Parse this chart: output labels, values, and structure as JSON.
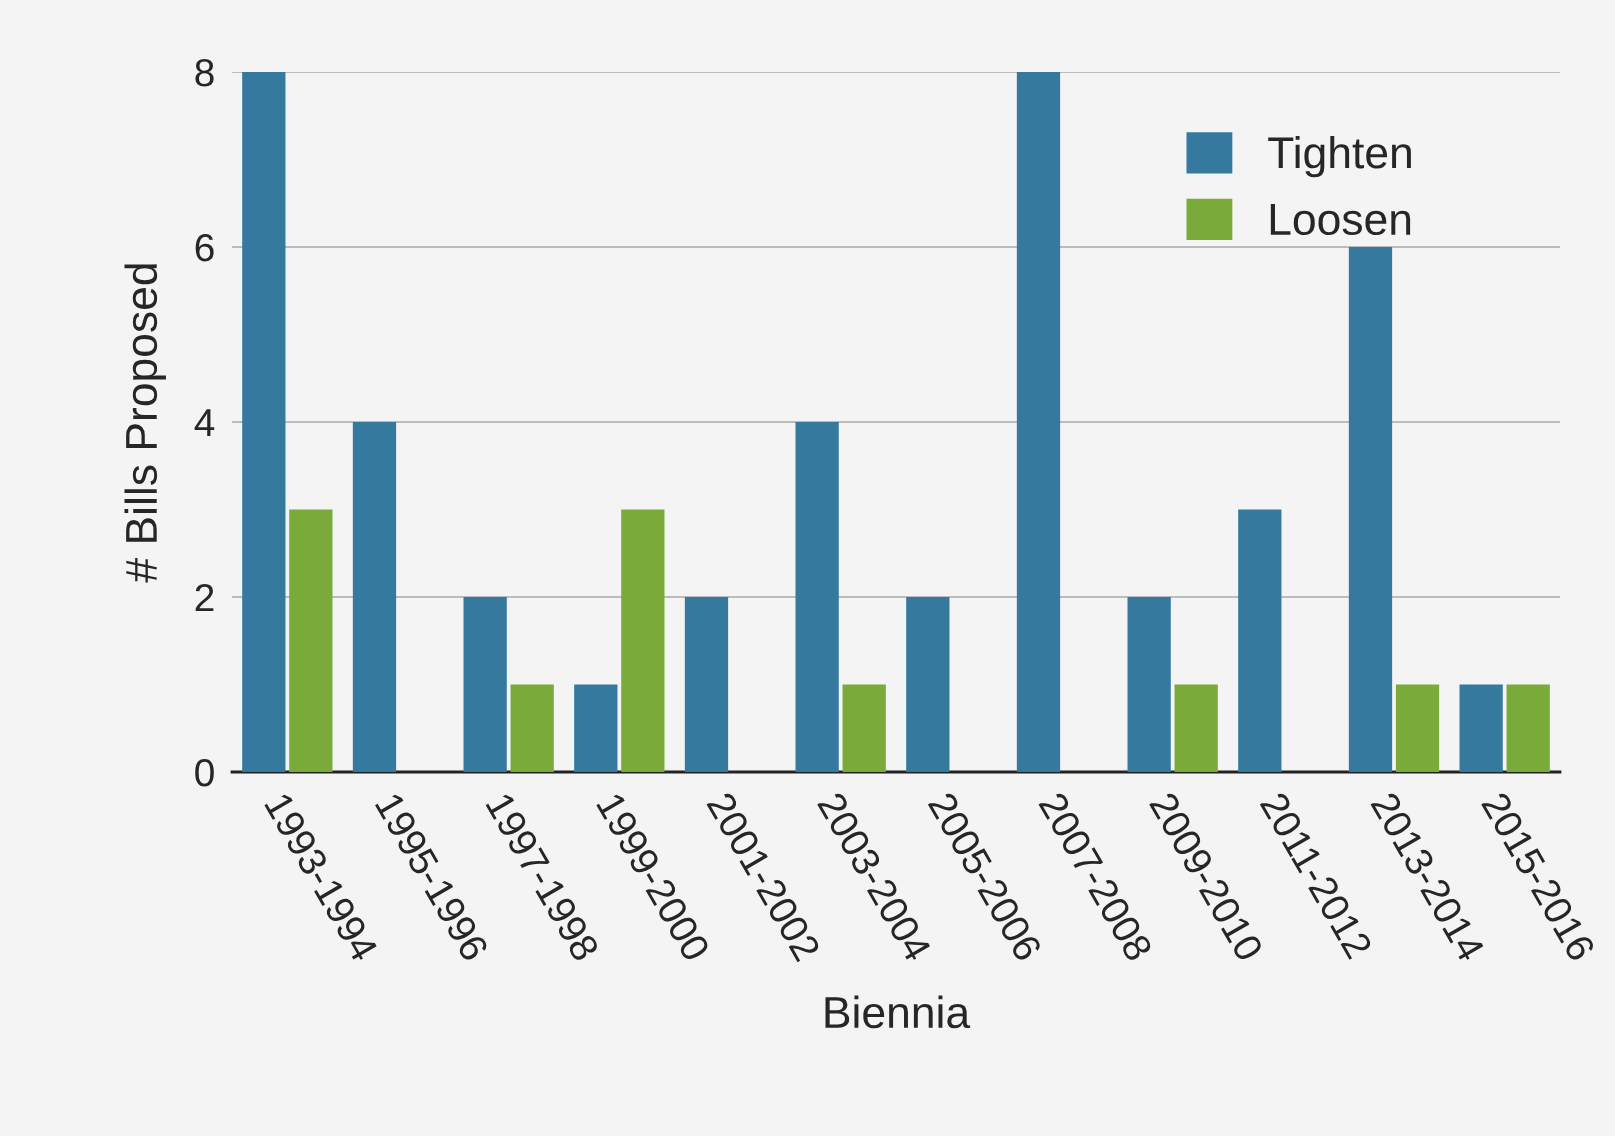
{
  "chart_data": {
    "type": "bar",
    "xlabel": "Biennia",
    "ylabel": "# Bills Proposed",
    "categories": [
      "1993-1994",
      "1995-1996",
      "1997-1998",
      "1999-2000",
      "2001-2002",
      "2003-2004",
      "2005-2006",
      "2007-2008",
      "2009-2010",
      "2011-2012",
      "2013-2014",
      "2015-2016"
    ],
    "series": [
      {
        "name": "Tighten",
        "color": "#35799f",
        "values": [
          8,
          4,
          2,
          1,
          2,
          4,
          2,
          8,
          2,
          3,
          6,
          1
        ]
      },
      {
        "name": "Loosen",
        "color": "#79aa3a",
        "values": [
          3,
          0,
          1,
          3,
          0,
          1,
          0,
          0,
          1,
          0,
          1,
          1
        ]
      }
    ],
    "ylim": [
      0,
      8
    ],
    "yticks": [
      0,
      2,
      4,
      6,
      8
    ],
    "grid": "y",
    "legend": "top right"
  }
}
